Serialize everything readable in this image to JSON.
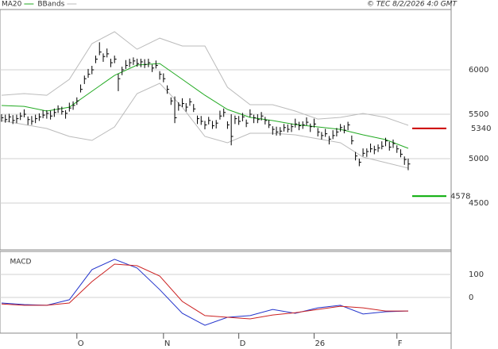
{
  "source": "© TEC 8/2/2026 4:0 GMT",
  "chart_data": [
    {
      "type": "ohlc",
      "xlim": [
        -0.42,
        119.4
      ],
      "xticks": [
        {
          "value": 20,
          "label": "O"
        },
        {
          "value": 43,
          "label": "N"
        },
        {
          "value": 63,
          "label": "D"
        },
        {
          "value": 83,
          "label": "26"
        },
        {
          "value": 105,
          "label": "F"
        }
      ],
      "ylim": [
        3973,
        6679
      ],
      "yticks": [
        6000,
        5500,
        5000,
        4500
      ],
      "grid": true,
      "bar_color": "#000000",
      "bars": {
        "high": [
          5500,
          5495,
          5505,
          5490,
          5495,
          5520,
          5555,
          5475,
          5480,
          5495,
          5510,
          5545,
          5545,
          5540,
          5565,
          5600,
          5585,
          5545,
          5630,
          5645,
          5690,
          5835,
          5935,
          6010,
          6045,
          6160,
          6310,
          6185,
          6240,
          6125,
          6160,
          5955,
          6035,
          6110,
          6125,
          6140,
          6125,
          6125,
          6120,
          6125,
          6060,
          6105,
          5985,
          5960,
          5825,
          5690,
          5700,
          5635,
          5680,
          5625,
          5680,
          5615,
          5485,
          5480,
          5425,
          5470,
          5425,
          5435,
          5540,
          5565,
          5420,
          5500,
          5485,
          5480,
          5515,
          5440,
          5555,
          5495,
          5500,
          5525,
          5470,
          5435,
          5365,
          5360,
          5355,
          5390,
          5385,
          5395,
          5450,
          5415,
          5420,
          5465,
          5395,
          5450,
          5345,
          5300,
          5335,
          5255,
          5320,
          5345,
          5390,
          5375,
          5415,
          5260,
          5075,
          5000,
          5115,
          5115,
          5170,
          5145,
          5160,
          5195,
          5235,
          5190,
          5215,
          5150,
          5105,
          5025,
          5000
        ],
        "low": [
          5415,
          5405,
          5410,
          5390,
          5400,
          5435,
          5465,
          5380,
          5380,
          5400,
          5425,
          5455,
          5450,
          5440,
          5470,
          5515,
          5495,
          5450,
          5530,
          5550,
          5605,
          5745,
          5840,
          5910,
          5950,
          6075,
          6165,
          6090,
          6140,
          6030,
          6075,
          5760,
          5940,
          6010,
          6030,
          6055,
          6035,
          6030,
          6020,
          6030,
          5975,
          6015,
          5890,
          5860,
          5730,
          5605,
          5400,
          5540,
          5580,
          5530,
          5595,
          5525,
          5390,
          5380,
          5330,
          5385,
          5335,
          5340,
          5440,
          5470,
          5335,
          5150,
          5390,
          5380,
          5420,
          5355,
          5465,
          5400,
          5400,
          5430,
          5385,
          5345,
          5270,
          5260,
          5260,
          5305,
          5295,
          5300,
          5350,
          5320,
          5335,
          5375,
          5300,
          5350,
          5250,
          5215,
          5245,
          5160,
          5220,
          5250,
          5305,
          5285,
          5320,
          5160,
          4980,
          4915,
          5025,
          5020,
          5070,
          5050,
          5075,
          5105,
          5140,
          5090,
          5120,
          5065,
          5015,
          4930,
          4870
        ],
        "close": [
          5460,
          5440,
          5470,
          5430,
          5450,
          5480,
          5500,
          5440,
          5420,
          5450,
          5470,
          5490,
          5510,
          5480,
          5520,
          5560,
          5530,
          5510,
          5570,
          5600,
          5650,
          5780,
          5900,
          5950,
          6000,
          6120,
          6200,
          6150,
          6180,
          6080,
          6120,
          5900,
          6000,
          6050,
          6080,
          6100,
          6070,
          6090,
          6060,
          6080,
          6020,
          6050,
          5950,
          5900,
          5780,
          5650,
          5460,
          5600,
          5620,
          5580,
          5640,
          5560,
          5450,
          5420,
          5380,
          5430,
          5370,
          5400,
          5480,
          5520,
          5380,
          5250,
          5450,
          5420,
          5470,
          5400,
          5500,
          5460,
          5440,
          5480,
          5430,
          5380,
          5330,
          5300,
          5310,
          5350,
          5330,
          5360,
          5390,
          5370,
          5380,
          5410,
          5360,
          5390,
          5300,
          5260,
          5280,
          5220,
          5260,
          5300,
          5350,
          5320,
          5380,
          5200,
          5030,
          4960,
          5060,
          5080,
          5110,
          5100,
          5120,
          5140,
          5200,
          5130,
          5170,
          5110,
          5050,
          4990,
          4940
        ]
      },
      "lines": [
        {
          "name": "MA20",
          "color": "#22aa22",
          "x": [
            0,
            6,
            12,
            18,
            24,
            30,
            36,
            42,
            48,
            54,
            60,
            66,
            72,
            78,
            84,
            90,
            96,
            102,
            108
          ],
          "values": [
            5598,
            5589,
            5536,
            5580,
            5759,
            5937,
            6054,
            6071,
            5893,
            5714,
            5554,
            5464,
            5429,
            5384,
            5357,
            5330,
            5268,
            5214,
            5116
          ]
        },
        {
          "name": "BBands",
          "color": "#bbbbbb",
          "x": [
            0,
            6,
            12,
            18,
            24,
            30,
            36,
            42,
            48,
            54,
            60,
            66,
            72,
            78,
            84,
            90,
            96,
            102,
            108
          ],
          "upper": [
            5714,
            5732,
            5714,
            5893,
            6295,
            6429,
            6232,
            6357,
            6268,
            6268,
            5804,
            5607,
            5607,
            5536,
            5446,
            5464,
            5509,
            5464,
            5375
          ],
          "lower": [
            5429,
            5384,
            5339,
            5250,
            5205,
            5357,
            5732,
            5848,
            5580,
            5250,
            5179,
            5286,
            5286,
            5268,
            5223,
            5179,
            5018,
            4955,
            4893
          ]
        }
      ],
      "levels": [
        {
          "value": 5340,
          "color": "#cc0000"
        },
        {
          "value": 4578,
          "color": "#00aa00"
        }
      ]
    },
    {
      "type": "line",
      "title": "MACD",
      "ylim": [
        -155,
        200
      ],
      "yticks": [
        100,
        0
      ],
      "grid": true,
      "series": [
        {
          "color": "#2233cc",
          "x": [
            0,
            6,
            12,
            18,
            24,
            30,
            36,
            42,
            48,
            54,
            60,
            66,
            72,
            78,
            84,
            90,
            96,
            102,
            108
          ],
          "values": [
            -24,
            -31,
            -34,
            -10,
            121,
            166,
            128,
            34,
            -69,
            -121,
            -86,
            -79,
            -52,
            -69,
            -45,
            -34,
            -72,
            -62,
            -59
          ]
        },
        {
          "color": "#cc2222",
          "x": [
            0,
            6,
            12,
            18,
            24,
            30,
            36,
            42,
            48,
            54,
            60,
            66,
            72,
            78,
            84,
            90,
            96,
            102,
            108
          ],
          "values": [
            -28,
            -34,
            -34,
            -24,
            69,
            145,
            138,
            93,
            -17,
            -79,
            -86,
            -93,
            -76,
            -66,
            -52,
            -38,
            -45,
            -59,
            -59
          ]
        }
      ]
    }
  ]
}
